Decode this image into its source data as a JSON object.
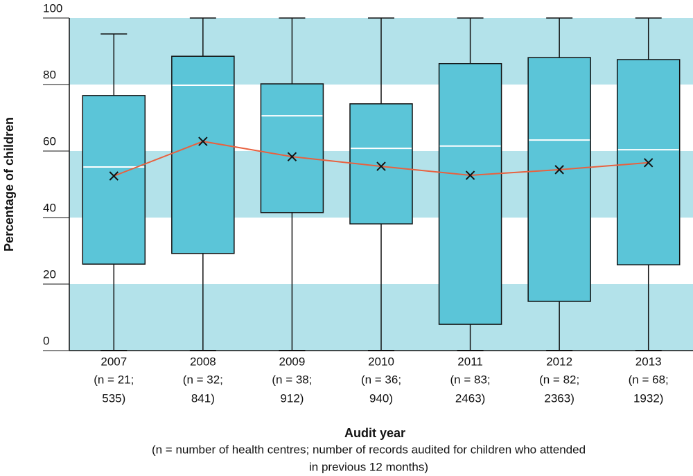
{
  "chart_data": {
    "type": "box",
    "categories": [
      "2007",
      "2008",
      "2009",
      "2010",
      "2011",
      "2012",
      "2013"
    ],
    "category_notes": [
      [
        "(n = 21;",
        "535)"
      ],
      [
        "(n = 32;",
        "841)"
      ],
      [
        "(n = 38;",
        "912)"
      ],
      [
        "(n = 36;",
        "940)"
      ],
      [
        "(n = 83;",
        "2463)"
      ],
      [
        "(n = 82;",
        "2363)"
      ],
      [
        "(n = 68;",
        "1932)"
      ]
    ],
    "min": [
      0,
      0,
      0,
      0,
      0,
      0,
      0
    ],
    "q1": [
      26,
      29.2,
      41.5,
      38.1,
      7.9,
      14.8,
      25.8
    ],
    "median": [
      55.2,
      79.8,
      70.6,
      60.8,
      61.5,
      63.3,
      60.4
    ],
    "q3": [
      76.7,
      88.5,
      80.2,
      74.2,
      86.3,
      88.1,
      87.5
    ],
    "max": [
      95.2,
      100,
      100,
      100,
      100,
      100,
      100
    ],
    "mean": [
      52.5,
      62.9,
      58.3,
      55.4,
      52.7,
      54.4,
      56.5
    ],
    "box_color": "#5bc5d8",
    "mean_color": "#e8613f",
    "band_color": "#b3e2ea",
    "ylim": [
      0,
      100
    ],
    "yticks": [
      0,
      20,
      40,
      60,
      80,
      100
    ],
    "y_label": "Percentage of children",
    "x_label": "Audit year",
    "footnote": [
      "(n = number of health centres; number of records audited for children who attended",
      "in previous 12 months)"
    ]
  }
}
